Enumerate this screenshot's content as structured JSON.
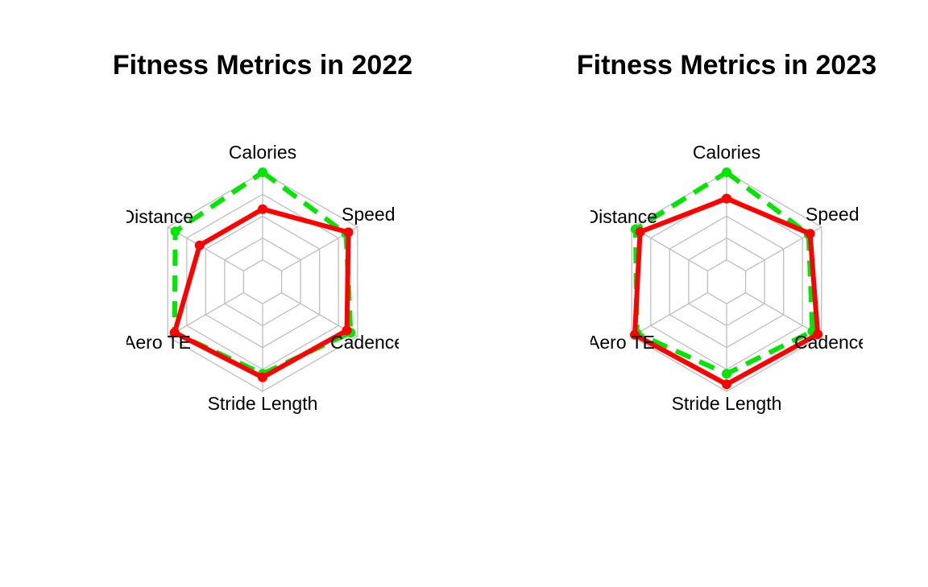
{
  "chart_data": [
    {
      "type": "radar",
      "title": "Fitness Metrics in 2022",
      "axes": [
        "Calories",
        "Speed",
        "Cadence",
        "Stride Length",
        "Aero TE",
        "Distance"
      ],
      "range": [
        0,
        1
      ],
      "grid_levels": 5,
      "grid_color": "#BEBEBE",
      "series": [
        {
          "values": [
            1.0,
            0.85,
            0.91,
            0.8,
            0.91,
            0.9
          ],
          "color": "#00E600",
          "line": "dashed"
        },
        {
          "values": [
            0.58,
            0.88,
            0.86,
            0.84,
            0.91,
            0.58
          ],
          "color": "#FF0000",
          "line": "solid"
        }
      ]
    },
    {
      "type": "radar",
      "title": "Fitness Metrics in 2023",
      "axes": [
        "Calories",
        "Speed",
        "Cadence",
        "Stride Length",
        "Aero TE",
        "Distance"
      ],
      "range": [
        0,
        1
      ],
      "grid_levels": 5,
      "grid_color": "#BEBEBE",
      "series": [
        {
          "values": [
            1.0,
            0.83,
            0.88,
            0.8,
            0.93,
            0.95
          ],
          "color": "#00E600",
          "line": "dashed"
        },
        {
          "values": [
            0.7,
            0.85,
            0.95,
            0.92,
            0.96,
            0.89
          ],
          "color": "#FF0000",
          "line": "solid"
        }
      ]
    }
  ]
}
